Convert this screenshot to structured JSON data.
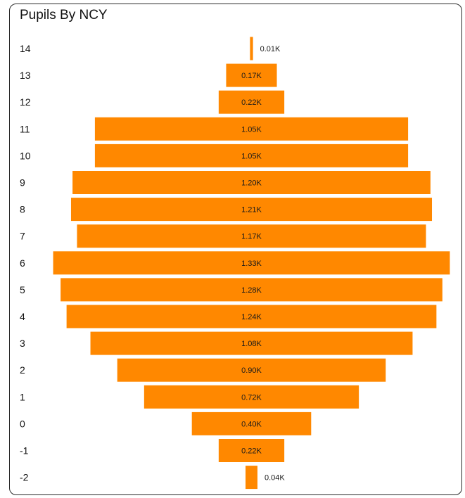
{
  "chart_data": {
    "type": "bar",
    "orientation": "horizontal-centered",
    "title": "Pupils By NCY",
    "categories": [
      "14",
      "13",
      "12",
      "11",
      "10",
      "9",
      "8",
      "7",
      "6",
      "5",
      "4",
      "3",
      "2",
      "1",
      "0",
      "-1",
      "-2"
    ],
    "values": [
      0.01,
      0.17,
      0.22,
      1.05,
      1.05,
      1.2,
      1.21,
      1.17,
      1.33,
      1.28,
      1.24,
      1.08,
      0.9,
      0.72,
      0.4,
      0.22,
      0.04
    ],
    "value_labels": [
      "0.01K",
      "0.17K",
      "0.22K",
      "1.05K",
      "1.05K",
      "1.20K",
      "1.21K",
      "1.17K",
      "1.33K",
      "1.28K",
      "1.24K",
      "1.08K",
      "0.90K",
      "0.72K",
      "0.40K",
      "0.22K",
      "0.04K"
    ],
    "unit": "K",
    "colors": {
      "bar": "#ff8800",
      "text": "#111111"
    }
  }
}
